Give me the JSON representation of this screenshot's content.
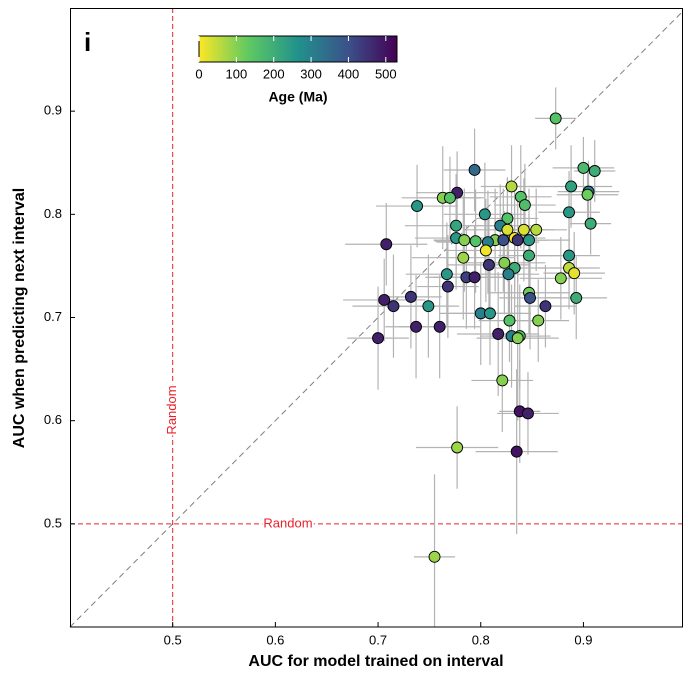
{
  "chart_data": {
    "type": "scatter",
    "panel_label": "i",
    "x_label": "AUC for model trained on interval",
    "y_label": "AUC when predicting next interval",
    "xlim": [
      0.4,
      0.996
    ],
    "ylim": [
      0.4,
      1.0
    ],
    "xticks": [
      0.5,
      0.6,
      0.7,
      0.8,
      0.9
    ],
    "yticks": [
      0.5,
      0.6,
      0.7,
      0.8,
      0.9
    ],
    "diagonal": true,
    "vline": {
      "value": 0.5,
      "label": "Random",
      "color": "#e8212a"
    },
    "hline": {
      "value": 0.5,
      "label": "Random",
      "color": "#e8212a"
    },
    "colorbar": {
      "label": "Age (Ma)",
      "clim": [
        0,
        530
      ],
      "ticks": [
        0,
        100,
        200,
        300,
        400,
        500
      ],
      "colormap": [
        "#fde725",
        "#5ec962",
        "#21918c",
        "#3b528b",
        "#440154"
      ]
    },
    "error_color": "#b3b3b3",
    "series": [
      {
        "x": [
          0.873,
          0.794,
          0.9,
          0.911,
          0.888,
          0.905,
          0.83,
          0.777,
          0.763,
          0.77,
          0.738,
          0.839,
          0.843,
          0.904,
          0.907,
          0.886,
          0.804,
          0.826,
          0.776,
          0.819,
          0.842,
          0.854,
          0.826,
          0.833,
          0.814,
          0.708,
          0.776,
          0.784,
          0.795,
          0.807,
          0.822,
          0.836,
          0.847,
          0.805,
          0.847,
          0.886,
          0.783,
          0.823,
          0.833,
          0.808,
          0.886,
          0.891,
          0.767,
          0.827,
          0.786,
          0.794,
          0.768,
          0.847,
          0.848,
          0.878,
          0.732,
          0.706,
          0.715,
          0.749,
          0.893,
          0.863,
          0.76,
          0.737,
          0.8,
          0.809,
          0.828,
          0.856,
          0.7,
          0.817,
          0.838,
          0.83,
          0.836,
          0.821,
          0.838,
          0.846,
          0.835,
          0.777,
          0.755
        ],
        "values": [
          0.893,
          0.843,
          0.845,
          0.842,
          0.827,
          0.822,
          0.827,
          0.821,
          0.816,
          0.816,
          0.808,
          0.817,
          0.809,
          0.819,
          0.791,
          0.802,
          0.8,
          0.796,
          0.789,
          0.789,
          0.785,
          0.785,
          0.785,
          0.777,
          0.775,
          0.771,
          0.777,
          0.775,
          0.774,
          0.773,
          0.775,
          0.775,
          0.775,
          0.765,
          0.76,
          0.76,
          0.758,
          0.753,
          0.748,
          0.751,
          0.748,
          0.743,
          0.742,
          0.742,
          0.739,
          0.739,
          0.73,
          0.724,
          0.719,
          0.738,
          0.72,
          0.717,
          0.711,
          0.711,
          0.719,
          0.711,
          0.691,
          0.691,
          0.704,
          0.704,
          0.697,
          0.697,
          0.68,
          0.684,
          0.682,
          0.682,
          0.68,
          0.639,
          0.609,
          0.607,
          0.57,
          0.574,
          0.468
        ],
        "age": [
          150,
          350,
          170,
          200,
          230,
          300,
          60,
          480,
          100,
          150,
          250,
          150,
          160,
          120,
          200,
          250,
          250,
          150,
          220,
          300,
          30,
          60,
          30,
          0,
          100,
          480,
          250,
          100,
          150,
          300,
          400,
          450,
          250,
          10,
          200,
          250,
          80,
          100,
          200,
          450,
          50,
          20,
          250,
          300,
          430,
          480,
          450,
          120,
          400,
          100,
          450,
          480,
          450,
          250,
          200,
          450,
          480,
          480,
          300,
          250,
          150,
          100,
          480,
          480,
          150,
          300,
          100,
          100,
          500,
          480,
          500,
          80,
          80
        ],
        "xerr": [
          0.02,
          0.03,
          0.03,
          0.02,
          0.04,
          0.03,
          0.03,
          0.04,
          0.04,
          0.03,
          0.04,
          0.03,
          0.03,
          0.03,
          0.02,
          0.03,
          0.04,
          0.03,
          0.05,
          0.03,
          0.03,
          0.03,
          0.04,
          0.03,
          0.04,
          0.04,
          0.04,
          0.03,
          0.04,
          0.05,
          0.03,
          0.03,
          0.04,
          0.04,
          0.03,
          0.03,
          0.05,
          0.04,
          0.03,
          0.04,
          0.03,
          0.03,
          0.04,
          0.03,
          0.04,
          0.04,
          0.03,
          0.04,
          0.03,
          0.04,
          0.03,
          0.04,
          0.04,
          0.03,
          0.03,
          0.03,
          0.04,
          0.03,
          0.04,
          0.04,
          0.03,
          0.03,
          0.03,
          0.04,
          0.03,
          0.03,
          0.04,
          0.03,
          0.02,
          0.03,
          0.04,
          0.04,
          0.02
        ],
        "yerr": [
          0.03,
          0.04,
          0.03,
          0.03,
          0.04,
          0.03,
          0.04,
          0.04,
          0.05,
          0.04,
          0.04,
          0.05,
          0.04,
          0.03,
          0.03,
          0.04,
          0.05,
          0.04,
          0.05,
          0.04,
          0.05,
          0.04,
          0.05,
          0.05,
          0.05,
          0.04,
          0.05,
          0.05,
          0.05,
          0.05,
          0.05,
          0.04,
          0.05,
          0.05,
          0.04,
          0.04,
          0.06,
          0.05,
          0.05,
          0.05,
          0.04,
          0.04,
          0.05,
          0.05,
          0.05,
          0.05,
          0.05,
          0.04,
          0.05,
          0.04,
          0.05,
          0.04,
          0.05,
          0.05,
          0.04,
          0.04,
          0.05,
          0.05,
          0.05,
          0.05,
          0.04,
          0.04,
          0.05,
          0.06,
          0.05,
          0.05,
          0.08,
          0.05,
          0.05,
          0.04,
          0.08,
          0.04,
          0.08
        ]
      }
    ]
  }
}
